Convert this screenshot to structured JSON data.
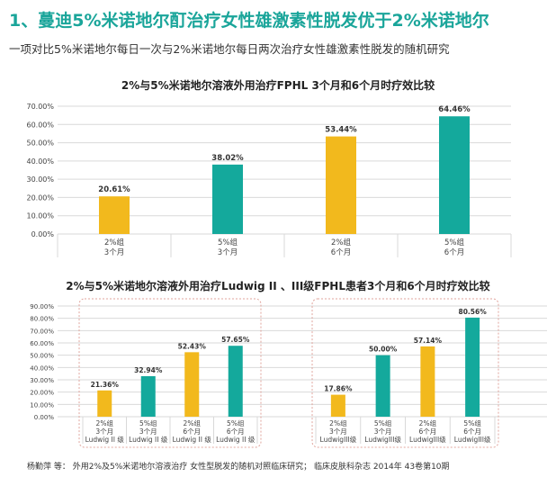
{
  "header": {
    "title": "1、蔓迪5%米诺地尔酊治疗女性雄激素性脱发优于2%米诺地尔",
    "subtitle": "一项对比5%米诺地尔每日一次与2%米诺地尔每日两次治疗女性雄激素性脱发的随机研究"
  },
  "colors": {
    "yellow": "#f2b91d",
    "teal": "#14a99c",
    "title": "#1aa59a",
    "box": "#e0a49c"
  },
  "chart_data": [
    {
      "type": "bar",
      "title": "2%与5%米诺地尔溶液外用治疗FPHL 3个月和6个月时疗效比较",
      "categories": [
        [
          "2%组",
          "3个月"
        ],
        [
          "5%组",
          "3个月"
        ],
        [
          "2%组",
          "6个月"
        ],
        [
          "5%组",
          "6个月"
        ]
      ],
      "values": [
        20.61,
        38.02,
        53.44,
        64.46
      ],
      "value_labels": [
        "20.61%",
        "38.02%",
        "53.44%",
        "64.46%"
      ],
      "bar_colors": [
        "yellow",
        "teal",
        "yellow",
        "teal"
      ],
      "ylim": [
        0,
        70
      ],
      "yticks": [
        0,
        10,
        20,
        30,
        40,
        50,
        60,
        70
      ],
      "ytick_labels": [
        "0.00%",
        "10.00%",
        "20.00%",
        "30.00%",
        "40.00%",
        "50.00%",
        "60.00%",
        "70.00%"
      ],
      "grid": true
    },
    {
      "type": "bar",
      "title": "2%与5%米诺地尔溶液外用治疗Ludwig II 、III级FPHL患者3个月和6个月时疗效比较",
      "categories": [
        [
          "2%组",
          "3个月",
          "Ludwig II 级"
        ],
        [
          "5%组",
          "3个月",
          "Ludwig II 级"
        ],
        [
          "2%组",
          "6个月",
          "Ludwig II 级"
        ],
        [
          "5%组",
          "6个月",
          "Ludwig II 级"
        ],
        [
          "2%组",
          "3个月",
          "LudwigIII级"
        ],
        [
          "5%组",
          "3个月",
          "LudwigIII级"
        ],
        [
          "2%组",
          "6个月",
          "LudwigIII级"
        ],
        [
          "5%组",
          "6个月",
          "LudwigIII级"
        ]
      ],
      "values": [
        21.36,
        32.94,
        52.43,
        57.65,
        17.86,
        50.0,
        57.14,
        80.56
      ],
      "value_labels": [
        "21.36%",
        "32.94%",
        "52.43%",
        "57.65%",
        "17.86%",
        "50.00%",
        "57.14%",
        "80.56%"
      ],
      "bar_colors": [
        "yellow",
        "teal",
        "yellow",
        "teal",
        "yellow",
        "teal",
        "yellow",
        "teal"
      ],
      "groups": [
        "Ludwig II 级",
        "LudwigIII级"
      ],
      "ylim": [
        0,
        90
      ],
      "yticks": [
        0,
        10,
        20,
        30,
        40,
        50,
        60,
        70,
        80,
        90
      ],
      "ytick_labels": [
        "0.00%",
        "10.00%",
        "20.00%",
        "30.00%",
        "40.00%",
        "50.00%",
        "60.00%",
        "70.00%",
        "80.00%",
        "90.00%"
      ],
      "grid": true
    }
  ],
  "source": "杨勤萍 等： 外用2%及5%米诺地尔溶液治疗 女性型脱发的随机对照临床研究； 临床皮肤科杂志 2014年 43卷第10期"
}
